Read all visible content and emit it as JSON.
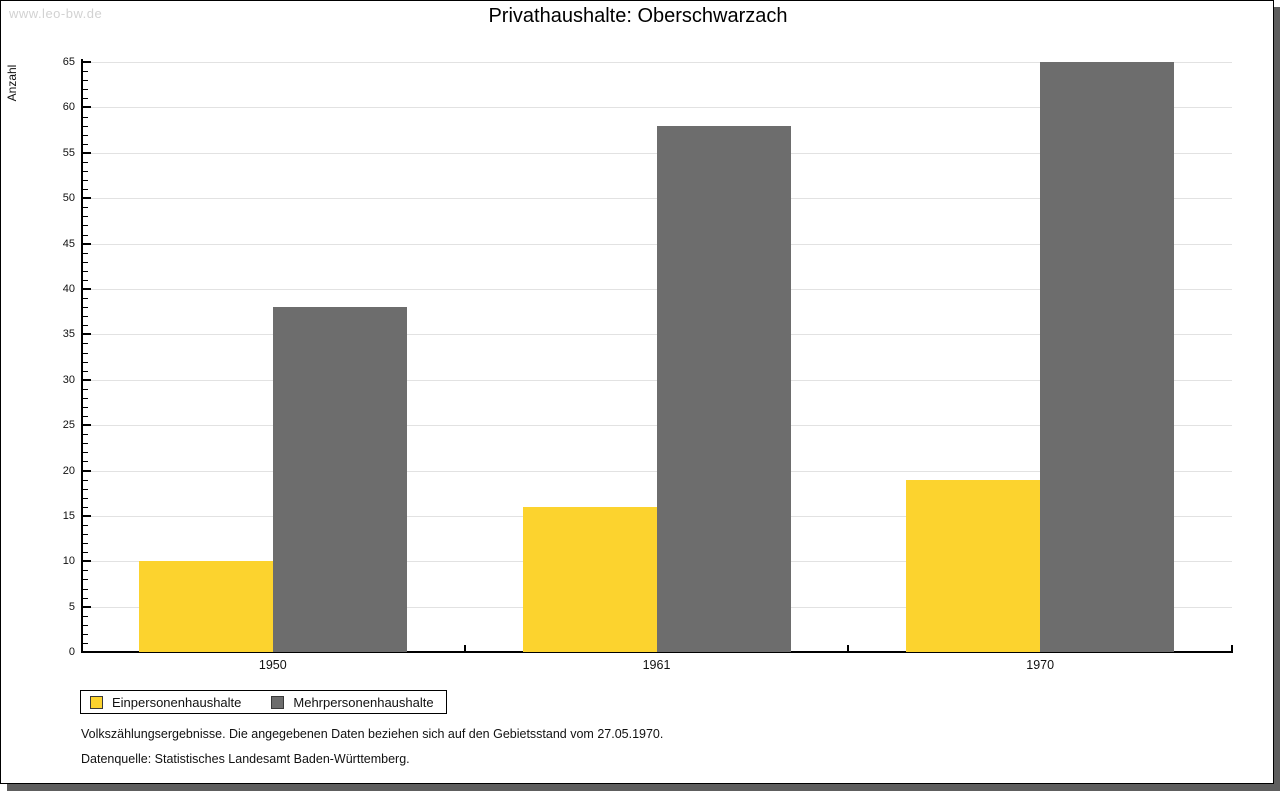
{
  "watermark": "www.leo-bw.de",
  "title": "Privathaushalte: Oberschwarzach",
  "chart_data": {
    "type": "bar",
    "title": "Privathaushalte: Oberschwarzach",
    "categories": [
      "1950",
      "1961",
      "1970"
    ],
    "series": [
      {
        "name": "Einpersonenhaushalte",
        "color": "#fcd32e",
        "values": [
          10,
          16,
          19
        ]
      },
      {
        "name": "Mehrpersonenhaushalte",
        "color": "#6d6d6d",
        "values": [
          38,
          58,
          65
        ]
      }
    ],
    "xlabel": "",
    "ylabel": "Anzahl",
    "ylim": [
      0,
      65
    ],
    "ytick_step": 5,
    "minor_tick_step": 1,
    "grid": true,
    "legend_position": "bottom-left"
  },
  "colors": {
    "series1": "#fcd32e",
    "series2": "#6d6d6d",
    "gridline": "#e2e2e2",
    "frame_shadow": "#5e5e5e",
    "watermark": "#d2d2d2"
  },
  "footer": {
    "line1": "Volkszählungsergebnisse. Die angegebenen Daten beziehen sich auf den Gebietsstand vom 27.05.1970.",
    "line2": "Datenquelle: Statistisches Landesamt Baden-Württemberg."
  }
}
